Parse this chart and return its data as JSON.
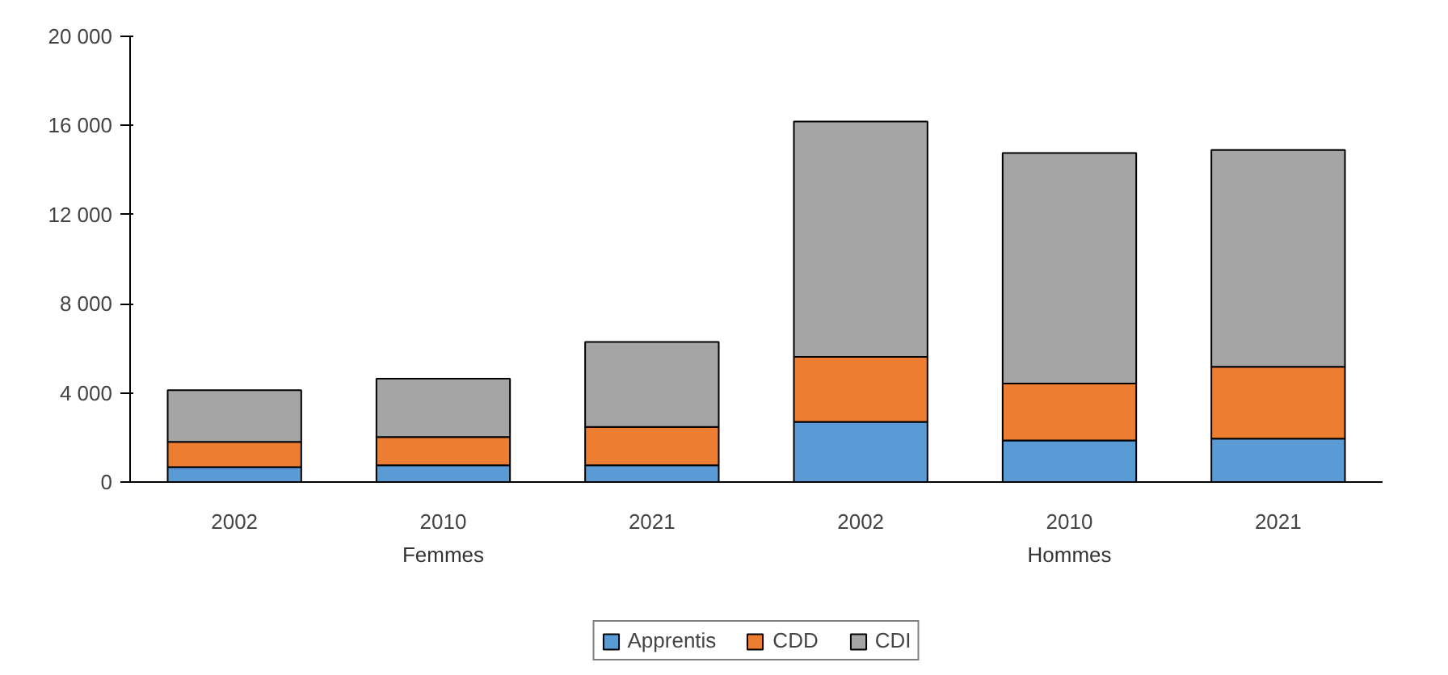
{
  "chart_data": {
    "type": "bar",
    "stacked": true,
    "categories": [
      "2002",
      "2010",
      "2021",
      "2002",
      "2010",
      "2021"
    ],
    "series": [
      {
        "name": "Apprentis",
        "color": "#5b9bd5",
        "values": [
          670,
          750,
          750,
          2700,
          1870,
          1950
        ]
      },
      {
        "name": "CDD",
        "color": "#ed7d31",
        "values": [
          1130,
          1270,
          1720,
          2920,
          2550,
          3220
        ]
      },
      {
        "name": "CDI",
        "color": "#a5a5a5",
        "values": [
          2320,
          2620,
          3820,
          10560,
          10340,
          9730
        ]
      }
    ],
    "ylim": [
      0,
      20000
    ],
    "yticks": [
      {
        "value": 0,
        "label": "0"
      },
      {
        "value": 4000,
        "label": "4 000"
      },
      {
        "value": 8000,
        "label": "8 000"
      },
      {
        "value": 12000,
        "label": "12 000"
      },
      {
        "value": 16000,
        "label": "16 000"
      },
      {
        "value": 20000,
        "label": "20 000"
      }
    ],
    "grid": false,
    "legend": "bottom",
    "annotations": [
      "Femmes",
      "Hommes"
    ]
  }
}
